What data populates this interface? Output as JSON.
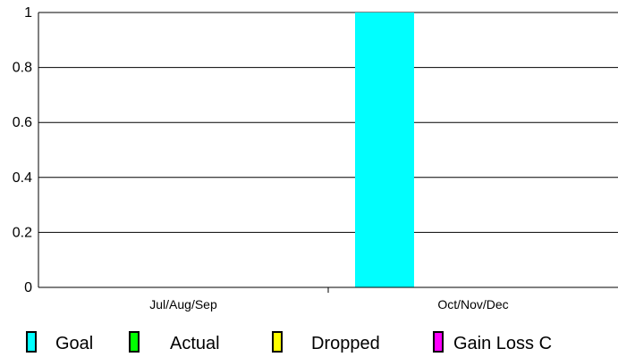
{
  "chart_data": {
    "type": "bar",
    "categories": [
      "Jul/Aug/Sep",
      "Oct/Nov/Dec"
    ],
    "series": [
      {
        "name": "Goal",
        "color": "#00ffff",
        "values": [
          0,
          1
        ]
      },
      {
        "name": "Actual",
        "color": "#00ff00",
        "values": [
          0,
          0
        ]
      },
      {
        "name": "Dropped",
        "color": "#ffff00",
        "values": [
          0,
          0
        ]
      },
      {
        "name": "Gain Loss C",
        "color": "#ff00ff",
        "values": [
          0,
          0
        ]
      }
    ],
    "ylim": [
      0,
      1
    ],
    "yticks": [
      "0",
      "0.2",
      "0.4",
      "0.6",
      "0.8",
      "1"
    ],
    "grid": true,
    "legend_position": "bottom"
  }
}
